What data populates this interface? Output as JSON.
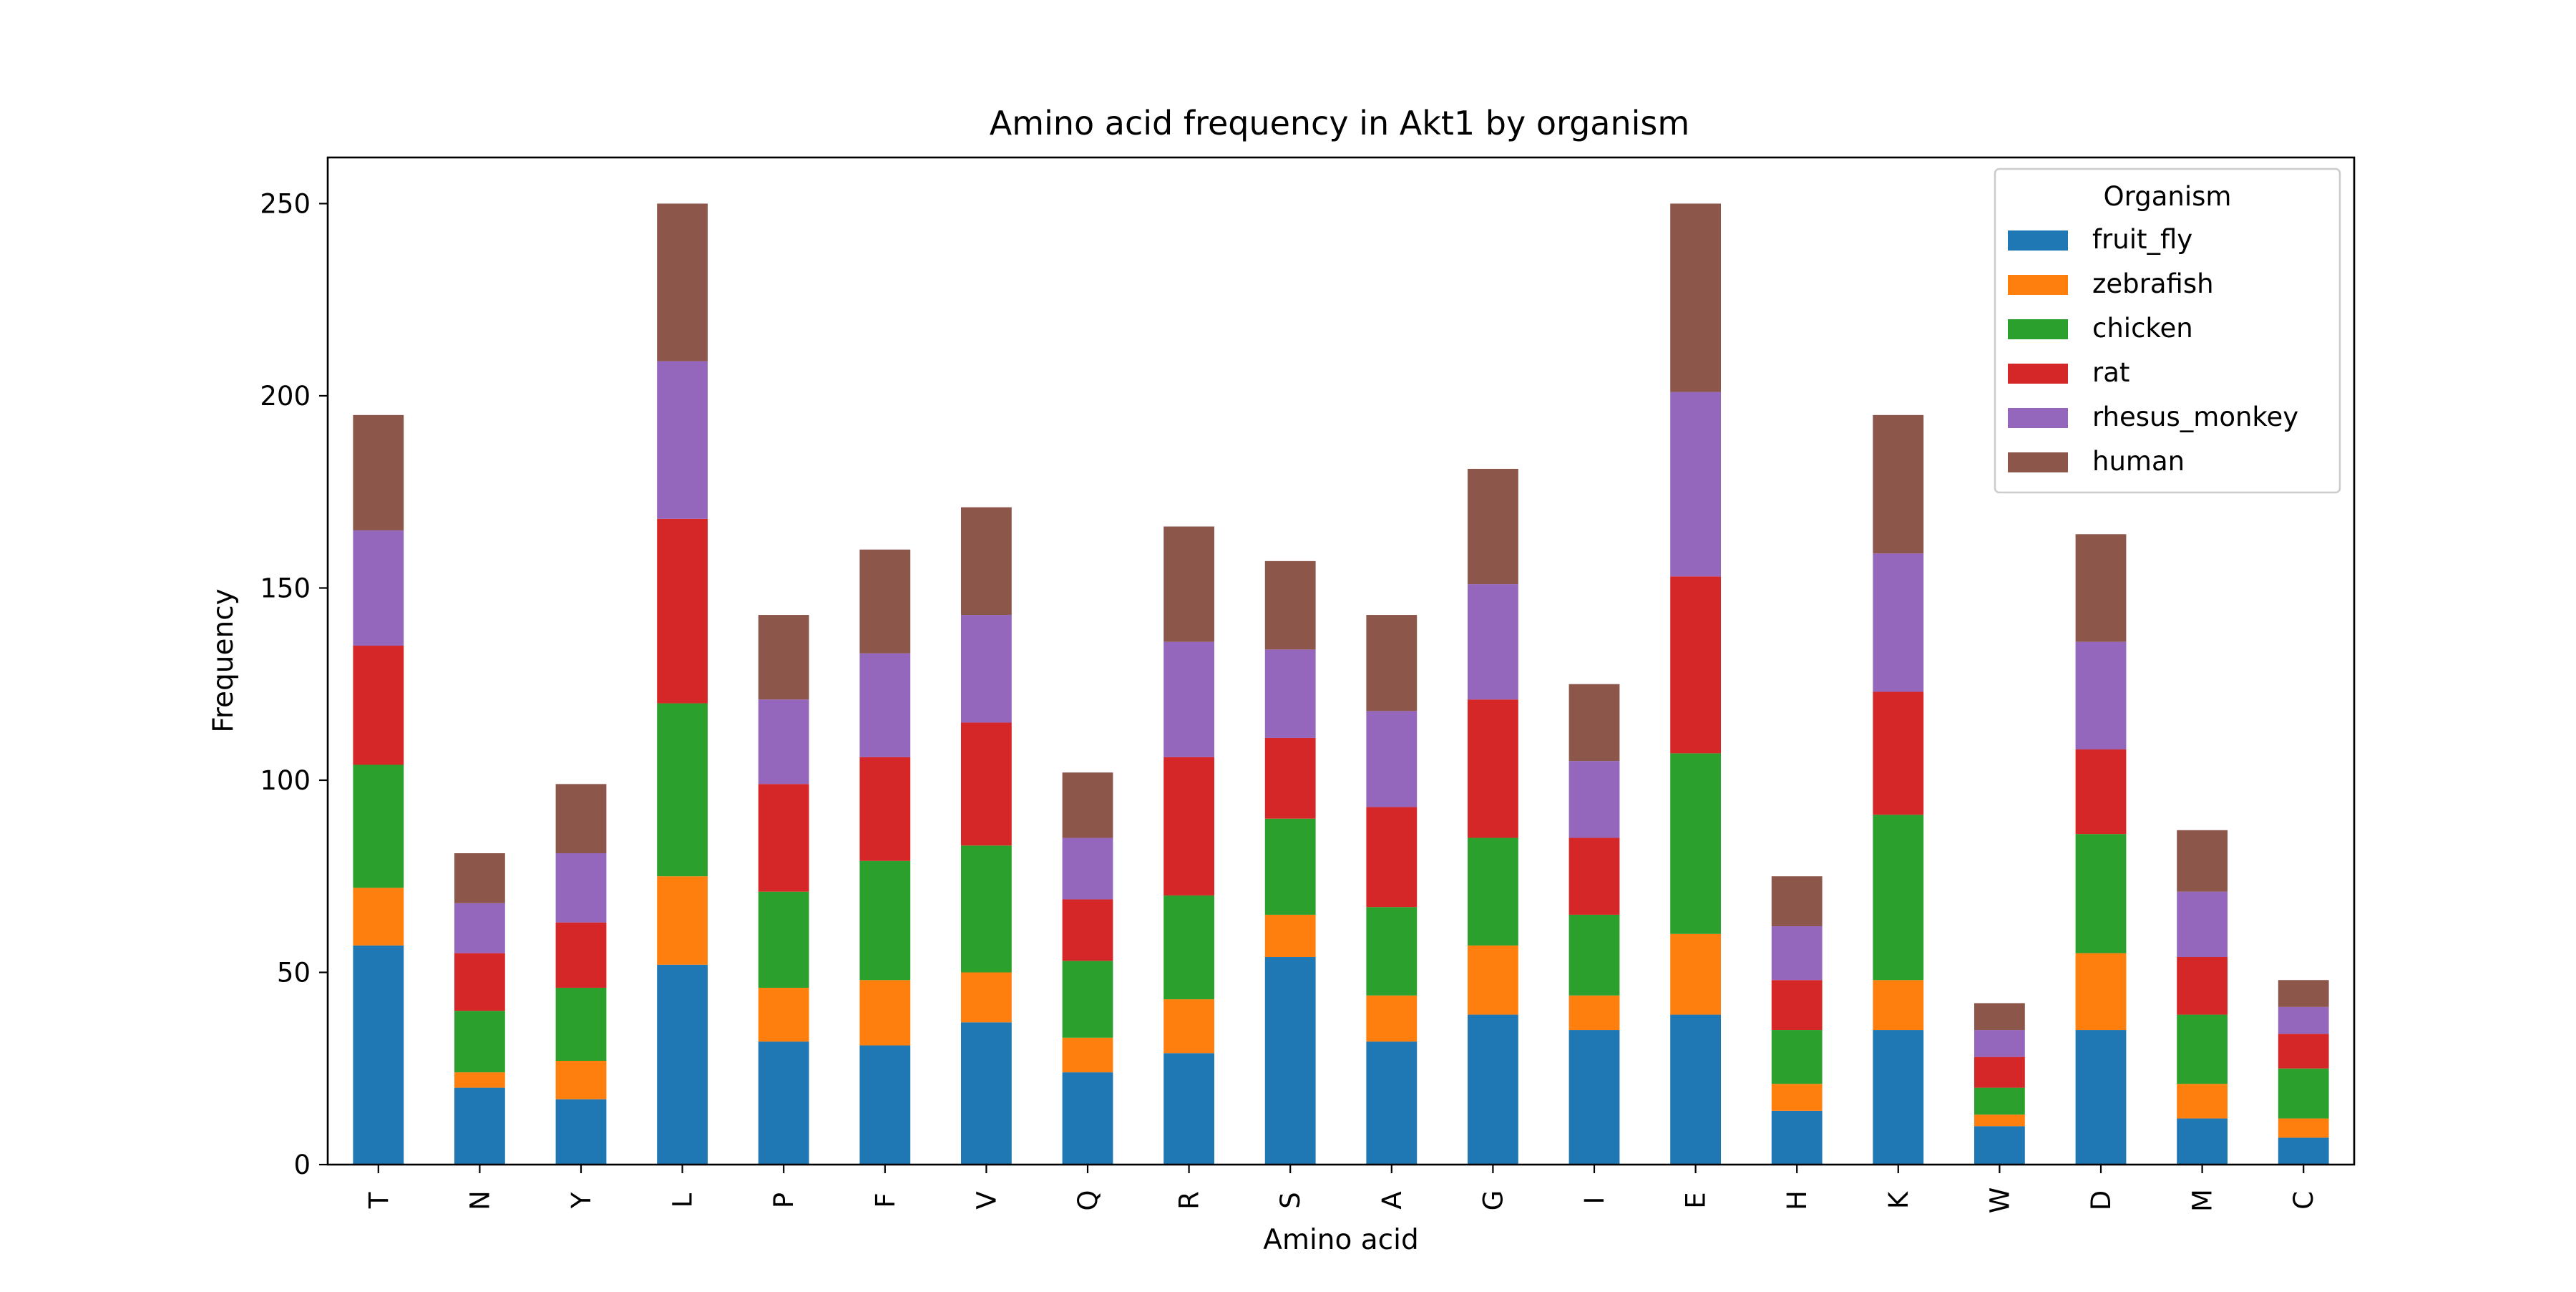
{
  "chart_data": {
    "type": "bar",
    "stacked": true,
    "title": "Amino acid frequency in Akt1 by organism",
    "xlabel": "Amino acid",
    "ylabel": "Frequency",
    "ylim": [
      0,
      262
    ],
    "yticks": [
      0,
      50,
      100,
      150,
      200,
      250
    ],
    "grid": false,
    "legend_title": "Organism",
    "legend_position": "top-right",
    "categories": [
      "T",
      "N",
      "Y",
      "L",
      "P",
      "F",
      "V",
      "Q",
      "R",
      "S",
      "A",
      "G",
      "I",
      "E",
      "H",
      "K",
      "W",
      "D",
      "M",
      "C"
    ],
    "series": [
      {
        "name": "fruit_fly",
        "color": "#1f77b4",
        "values": [
          57,
          20,
          17,
          52,
          32,
          31,
          37,
          24,
          29,
          54,
          32,
          39,
          35,
          39,
          14,
          35,
          10,
          35,
          12,
          7
        ]
      },
      {
        "name": "zebrafish",
        "color": "#ff7f0e",
        "values": [
          15,
          4,
          10,
          23,
          14,
          17,
          13,
          9,
          14,
          11,
          12,
          18,
          9,
          21,
          7,
          13,
          3,
          20,
          9,
          5
        ]
      },
      {
        "name": "chicken",
        "color": "#2ca02c",
        "values": [
          32,
          16,
          19,
          45,
          25,
          31,
          33,
          20,
          27,
          25,
          23,
          28,
          21,
          47,
          14,
          43,
          7,
          31,
          18,
          13
        ]
      },
      {
        "name": "rat",
        "color": "#d62728",
        "values": [
          31,
          15,
          17,
          48,
          28,
          27,
          32,
          16,
          36,
          21,
          26,
          36,
          20,
          46,
          13,
          32,
          8,
          22,
          15,
          9
        ]
      },
      {
        "name": "rhesus_monkey",
        "color": "#9467bd",
        "values": [
          30,
          13,
          18,
          41,
          22,
          27,
          28,
          16,
          30,
          23,
          25,
          30,
          20,
          48,
          14,
          36,
          7,
          28,
          17,
          7
        ]
      },
      {
        "name": "human",
        "color": "#8c564b",
        "values": [
          30,
          13,
          18,
          41,
          22,
          27,
          28,
          17,
          30,
          23,
          25,
          30,
          20,
          49,
          13,
          36,
          7,
          28,
          16,
          7
        ]
      }
    ]
  }
}
